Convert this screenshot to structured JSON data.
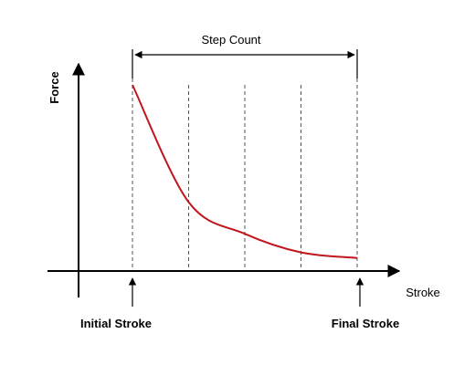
{
  "labels": {
    "step_count": "Step Count",
    "force": "Force",
    "stroke": "Stroke",
    "initial_stroke": "Initial Stroke",
    "final_stroke": "Final Stroke"
  },
  "colors": {
    "curve": "#c0161c",
    "axis": "#000000",
    "guide": "#555555"
  },
  "chart_data": {
    "type": "line",
    "steps": 4,
    "series": [
      {
        "x": [
          0,
          1,
          2,
          3,
          4
        ],
        "y": [
          1.0,
          0.37,
          0.2,
          0.1,
          0.07
        ]
      }
    ]
  }
}
